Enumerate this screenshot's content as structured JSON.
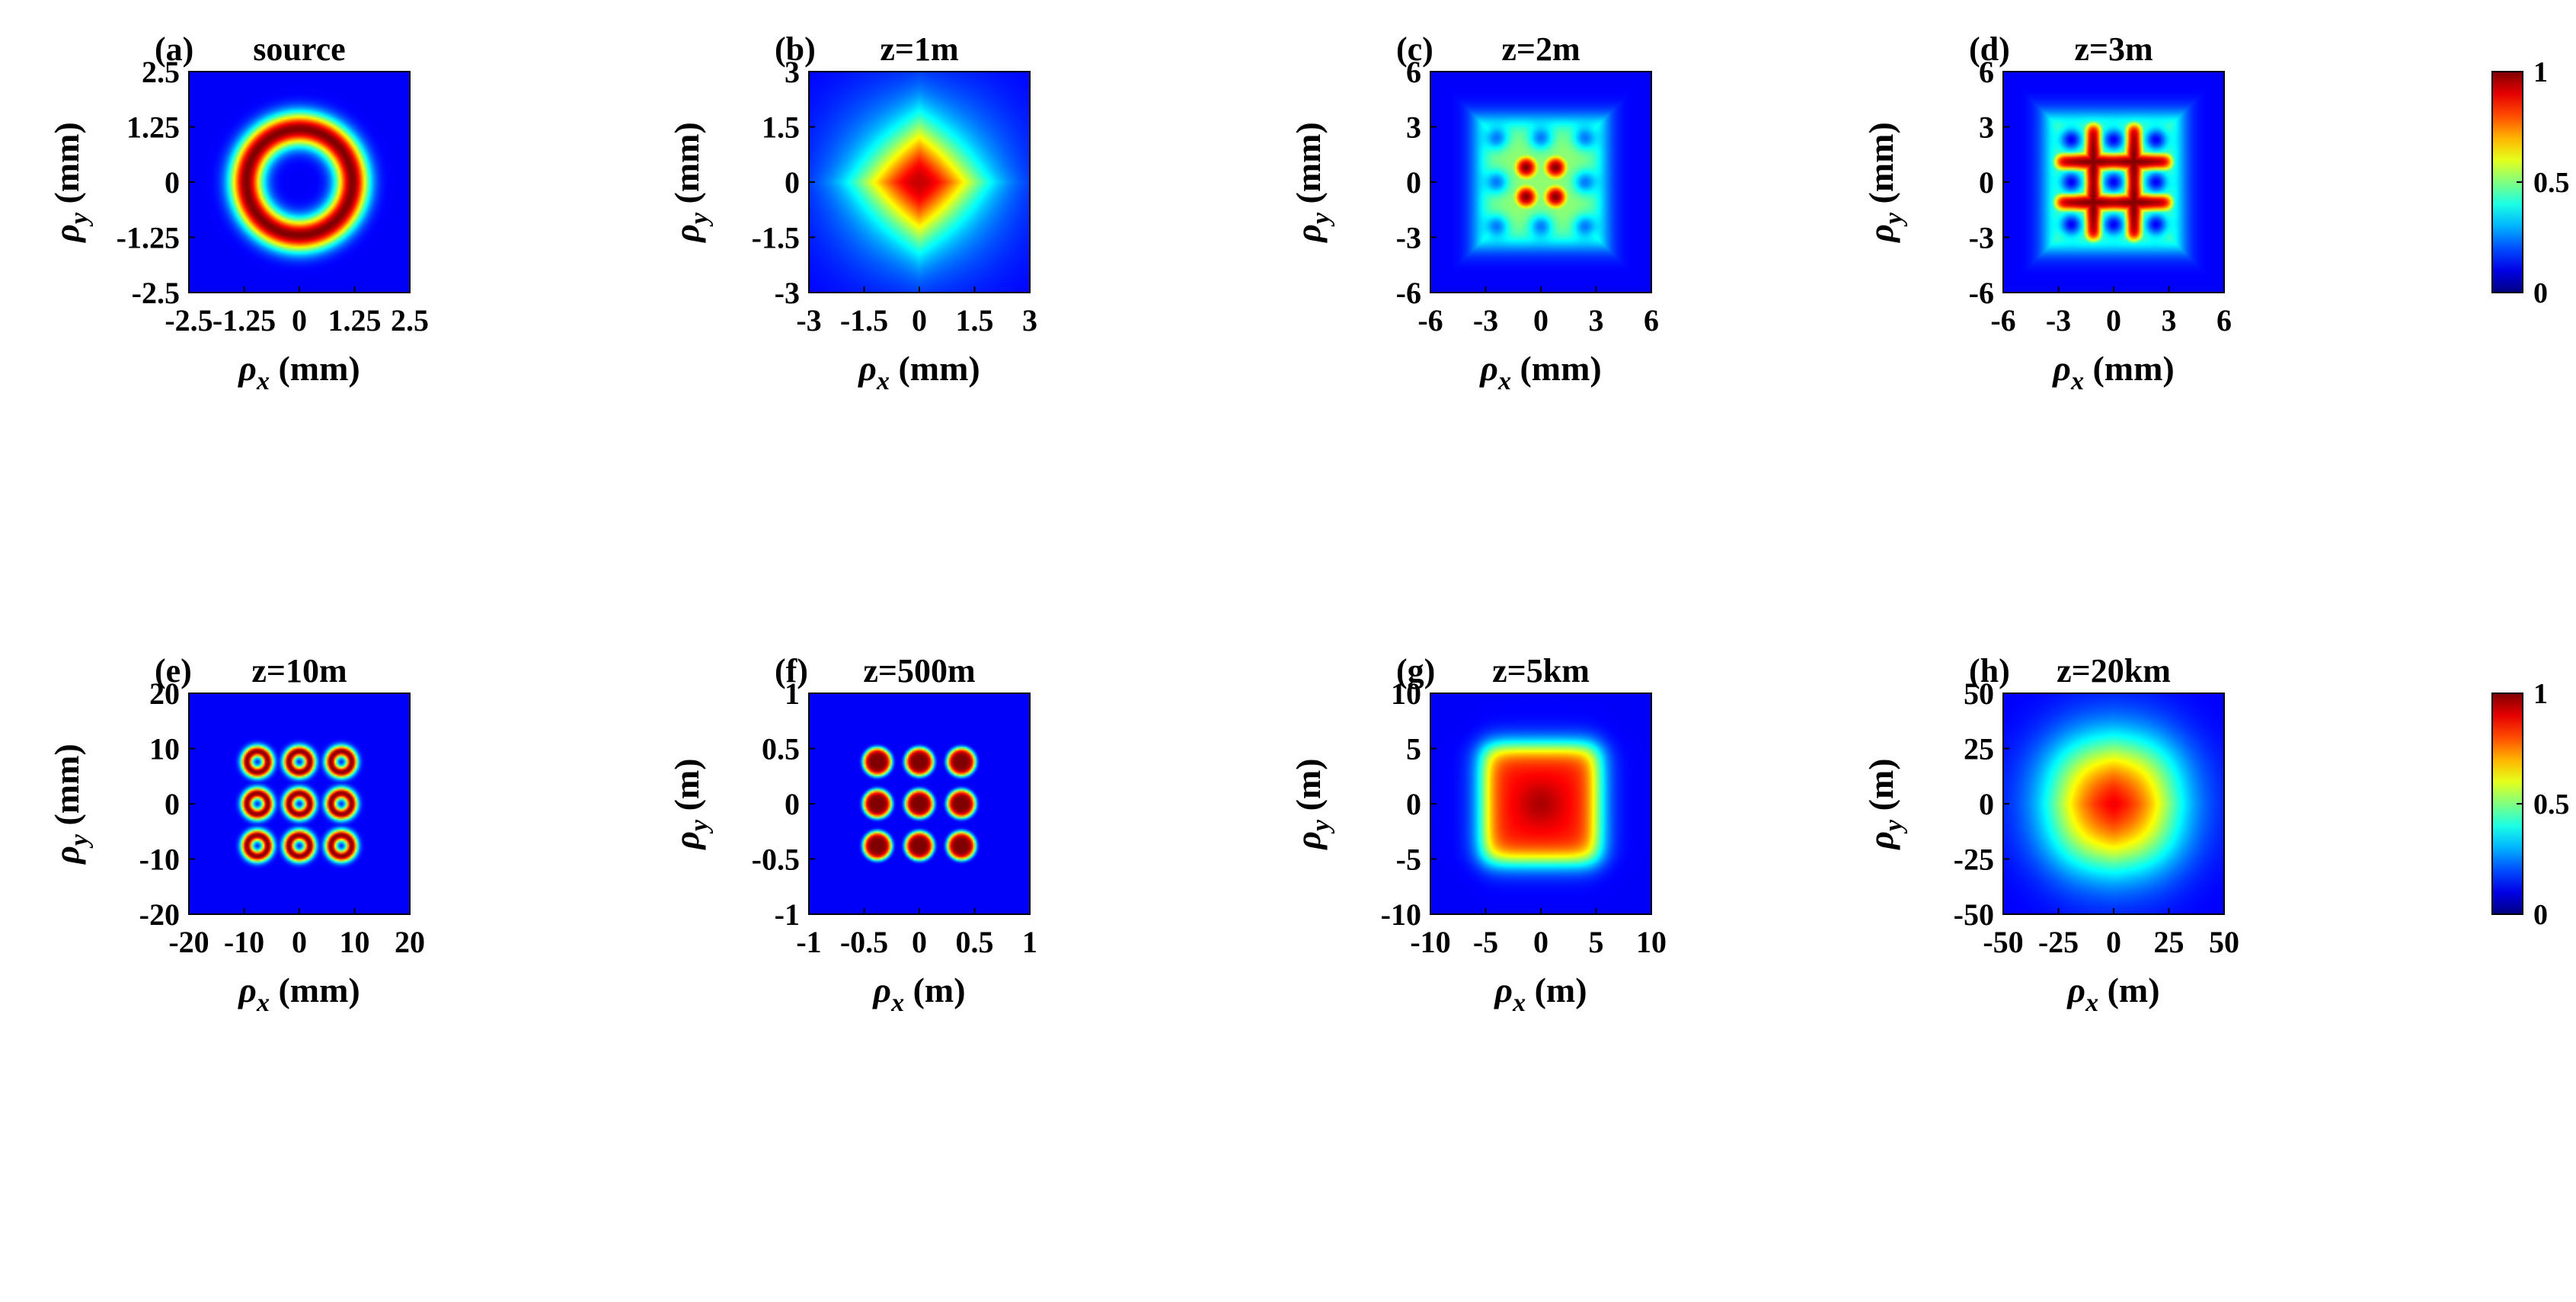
{
  "chart_data": [
    {
      "type": "heatmap",
      "letter": "(a)",
      "title": "source",
      "xlabel": "ρx (mm)",
      "ylabel": "ρy (mm)",
      "xlim": [
        -2.5,
        2.5
      ],
      "ylim": [
        -2.5,
        2.5
      ],
      "xticks": [
        "-2.5",
        "-1.25",
        "0",
        "1.25",
        "2.5"
      ],
      "yticks": [
        "2.5",
        "1.25",
        "0",
        "-1.25",
        "-2.5"
      ],
      "pattern": "ring",
      "features": [
        {
          "cx": 0,
          "cy": 0,
          "r": 1.2,
          "w": 0.26,
          "peak": 1.0
        }
      ]
    },
    {
      "type": "heatmap",
      "letter": "(b)",
      "title": "z=1m",
      "xlabel": "ρx (mm)",
      "ylabel": "ρy (mm)",
      "xlim": [
        -3,
        3
      ],
      "ylim": [
        -3,
        3
      ],
      "xticks": [
        "-3",
        "-1.5",
        "0",
        "1.5",
        "3"
      ],
      "yticks": [
        "3",
        "1.5",
        "0",
        "-1.5",
        "-3"
      ],
      "pattern": "diamond",
      "features": [
        {
          "cx": 0,
          "cy": 0,
          "r": 2.3,
          "peak": 0.9
        }
      ]
    },
    {
      "type": "heatmap",
      "letter": "(c)",
      "title": "z=2m",
      "xlabel": "ρx (mm)",
      "ylabel": "ρy (mm)",
      "xlim": [
        -6,
        6
      ],
      "ylim": [
        -6,
        6
      ],
      "xticks": [
        "-6",
        "-3",
        "0",
        "3",
        "6"
      ],
      "yticks": [
        "6",
        "3",
        "0",
        "-3",
        "-6"
      ],
      "pattern": "grid-spots",
      "features": [
        {
          "cx": -0.8,
          "cy": 0.8,
          "r": 0.55,
          "peak": 1.0
        },
        {
          "cx": 0.8,
          "cy": 0.8,
          "r": 0.55,
          "peak": 1.0
        },
        {
          "cx": -0.8,
          "cy": -0.8,
          "r": 0.55,
          "peak": 1.0
        },
        {
          "cx": 0.8,
          "cy": -0.8,
          "r": 0.55,
          "peak": 1.0
        }
      ],
      "background_box": {
        "half": 3.4,
        "level": 0.45
      }
    },
    {
      "type": "heatmap",
      "letter": "(d)",
      "title": "z=3m",
      "xlabel": "ρx (mm)",
      "ylabel": "ρy (mm)",
      "xlim": [
        -6,
        6
      ],
      "ylim": [
        -6,
        6
      ],
      "xticks": [
        "-6",
        "-3",
        "0",
        "3",
        "6"
      ],
      "yticks": [
        "6",
        "3",
        "0",
        "-3",
        "-6"
      ],
      "pattern": "cross-grid",
      "features": [
        {
          "lines": [
            -1.1,
            1.1
          ],
          "half": 3.2,
          "w": 0.45,
          "peak": 1.0
        }
      ],
      "background_box": {
        "half": 3.6,
        "level": 0.45
      }
    },
    {
      "type": "heatmap",
      "letter": "(e)",
      "title": "z=10m",
      "xlabel": "ρx (mm)",
      "ylabel": "ρy (mm)",
      "xlim": [
        -20,
        20
      ],
      "ylim": [
        -20,
        20
      ],
      "xticks": [
        "-20",
        "-10",
        "0",
        "10",
        "20"
      ],
      "yticks": [
        "20",
        "10",
        "0",
        "-10",
        "-20"
      ],
      "pattern": "ring-array",
      "features": [
        {
          "spacing": 7.6,
          "r": 1.9,
          "w": 0.75,
          "peak": 1.0
        }
      ]
    },
    {
      "type": "heatmap",
      "letter": "(f)",
      "title": "z=500m",
      "xlabel": "ρx (m)",
      "ylabel": "ρy (m)",
      "xlim": [
        -1,
        1
      ],
      "ylim": [
        -1,
        1
      ],
      "xticks": [
        "-1",
        "-0.5",
        "0",
        "0.5",
        "1"
      ],
      "yticks": [
        "1",
        "0.5",
        "0",
        "-0.5",
        "-1"
      ],
      "pattern": "spot-array",
      "features": [
        {
          "spacing": 0.38,
          "r": 0.13,
          "peak": 1.0
        }
      ]
    },
    {
      "type": "heatmap",
      "letter": "(g)",
      "title": "z=5km",
      "xlabel": "ρx (m)",
      "ylabel": "ρy (m)",
      "xlim": [
        -10,
        10
      ],
      "ylim": [
        -10,
        10
      ],
      "xticks": [
        "-10",
        "-5",
        "0",
        "5",
        "10"
      ],
      "yticks": [
        "10",
        "5",
        "0",
        "-5",
        "-10"
      ],
      "pattern": "flat-square",
      "features": [
        {
          "half": 5.2,
          "soft": 1.4,
          "peak": 0.95
        }
      ]
    },
    {
      "type": "heatmap",
      "letter": "(h)",
      "title": "z=20km",
      "xlabel": "ρx (m)",
      "ylabel": "ρy (m)",
      "xlim": [
        -50,
        50
      ],
      "ylim": [
        -50,
        50
      ],
      "xticks": [
        "-50",
        "-25",
        "0",
        "25",
        "50"
      ],
      "yticks": [
        "50",
        "25",
        "0",
        "-25",
        "-50"
      ],
      "pattern": "soft-square",
      "features": [
        {
          "half": 24,
          "soft": 9,
          "peak": 1.0
        }
      ]
    }
  ],
  "colorbar": {
    "ticks": [
      "1",
      "0.5",
      "0"
    ],
    "values": [
      1,
      0.5,
      0
    ],
    "colormap": "jet"
  },
  "colors": {
    "background_low": "#000080",
    "high": "#7f0000"
  }
}
